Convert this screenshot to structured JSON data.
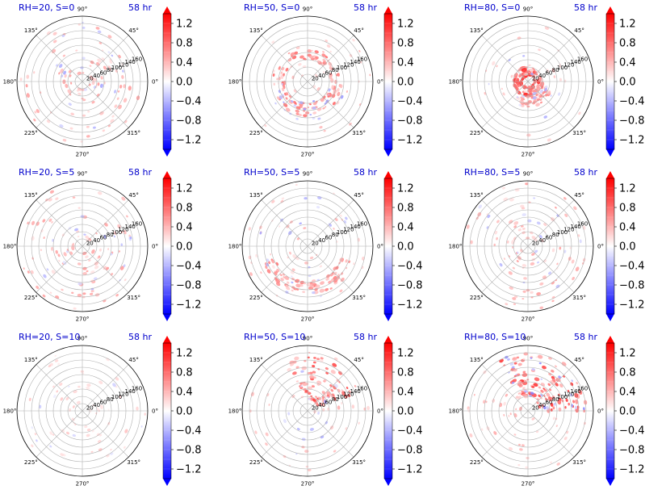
{
  "chart_data": {
    "type": "heatmap",
    "projection": "polar",
    "layout": {
      "rows": 3,
      "cols": 3
    },
    "panels": [
      {
        "id": "rh20-s0",
        "rh": 20,
        "s": 0,
        "title": "RH=20, S=0",
        "time_label": "58 hr",
        "pattern": "scattered-weak"
      },
      {
        "id": "rh50-s0",
        "rh": 50,
        "s": 0,
        "title": "RH=50, S=0",
        "time_label": "58 hr",
        "pattern": "ring"
      },
      {
        "id": "rh80-s0",
        "rh": 80,
        "s": 0,
        "title": "RH=80, S=0",
        "time_label": "58 hr",
        "pattern": "core-ring"
      },
      {
        "id": "rh20-s5",
        "rh": 20,
        "s": 5,
        "title": "RH=20, S=5",
        "time_label": "58 hr",
        "pattern": "scattered-weak"
      },
      {
        "id": "rh50-s5",
        "rh": 50,
        "s": 5,
        "title": "RH=50, S=5",
        "time_label": "58 hr",
        "pattern": "ring-south"
      },
      {
        "id": "rh80-s5",
        "rh": 80,
        "s": 5,
        "title": "RH=80, S=5",
        "time_label": "58 hr",
        "pattern": "scattered-weak"
      },
      {
        "id": "rh20-s10",
        "rh": 20,
        "s": 10,
        "title": "RH=20, S=10",
        "time_label": "58 hr",
        "pattern": "very-weak"
      },
      {
        "id": "rh50-s10",
        "rh": 50,
        "s": 10,
        "title": "RH=50, S=10",
        "time_label": "58 hr",
        "pattern": "band-northeast"
      },
      {
        "id": "rh80-s10",
        "rh": 80,
        "s": 10,
        "title": "RH=80, S=10",
        "time_label": "58 hr",
        "pattern": "band-northeast-strong"
      }
    ],
    "angular_ticks": [
      "0°",
      "45°",
      "90°",
      "135°",
      "180°",
      "225°",
      "270°",
      "315°"
    ],
    "angular_values_deg": [
      0,
      45,
      90,
      135,
      180,
      225,
      270,
      315
    ],
    "radial_ticks": [
      "20",
      "40",
      "60",
      "80",
      "100",
      "120",
      "140",
      "160"
    ],
    "radial_values": [
      20,
      40,
      60,
      80,
      100,
      120,
      140,
      160
    ],
    "rlim": [
      0,
      180
    ],
    "colorbar": {
      "ticks": [
        "1.2",
        "0.8",
        "0.4",
        "0.0",
        "−0.4",
        "−0.8",
        "−1.2"
      ],
      "tick_values": [
        1.2,
        0.8,
        0.4,
        0.0,
        -0.4,
        -0.8,
        -1.2
      ],
      "vmin": -1.4,
      "vmax": 1.4,
      "extend": "both",
      "colormap": "bwr"
    },
    "grid": true,
    "colors": {
      "positive": "#ff0000",
      "negative": "#0000ff",
      "neutral": "#ffffff",
      "title": "#0000cc"
    }
  }
}
